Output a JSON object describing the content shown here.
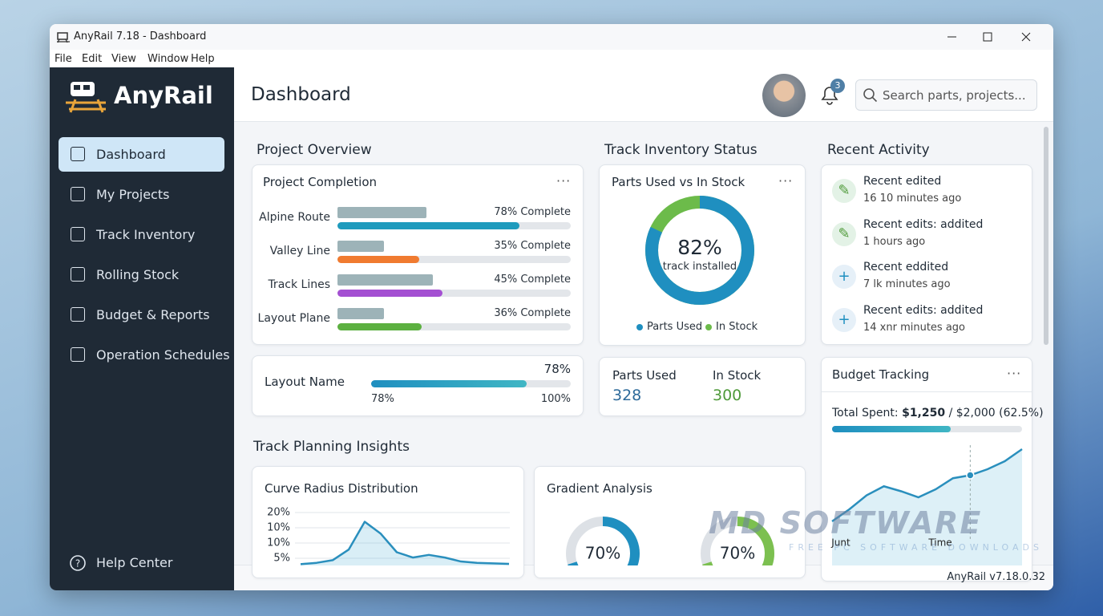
{
  "window": {
    "title": "AnyRail 7.18 - Dashboard",
    "menu": [
      "File",
      "Edit",
      "View",
      "Window",
      "Help"
    ]
  },
  "sidebar": {
    "brand": "AnyRail",
    "nav": [
      "Dashboard",
      "My Projects",
      "Track Inventory",
      "Rolling Stock",
      "Budget & Reports",
      "Operation Schedules"
    ],
    "active": 0,
    "help": "Help Center"
  },
  "header": {
    "title": "Dashboard",
    "notifications": 3,
    "search_placeholder": "Search parts, projects..."
  },
  "project_overview": {
    "heading": "Project Overview",
    "card_title": "Project Completion",
    "rows": [
      {
        "name": "Alpine Route",
        "value": 78,
        "label": "78% Complete",
        "planned": 38,
        "color": "#1e9bbd"
      },
      {
        "name": "Valley Line",
        "value": 35,
        "label": "35% Complete",
        "planned": 20,
        "color": "#f07b30"
      },
      {
        "name": "Track Lines",
        "value": 45,
        "label": "45% Complete",
        "planned": 41,
        "color": "#a450d2"
      },
      {
        "name": "Layout Plane",
        "value": 36,
        "label": "36% Complete",
        "planned": 20,
        "color": "#5cb040"
      }
    ]
  },
  "layout": {
    "name": "Layout Name",
    "value": 78,
    "label": "78%",
    "min_label": "78%",
    "max_label": "100%"
  },
  "inventory": {
    "heading": "Track Inventory Status",
    "card_title": "Parts Used vs In Stock",
    "donut": {
      "value": 82,
      "label": "82%",
      "caption": "track installed"
    },
    "legend": [
      {
        "name": "Parts Used",
        "color": "#1f8fc0"
      },
      {
        "name": "In Stock",
        "color": "#6cbb4a"
      }
    ],
    "stats": [
      {
        "name": "Parts Used",
        "value": 328,
        "color": "#2d6a9a"
      },
      {
        "name": "In Stock",
        "value": 300,
        "color": "#4f9a3a"
      }
    ]
  },
  "activity": {
    "heading": "Recent Activity",
    "items": [
      {
        "title": "Recent edited",
        "time": "16 10 minutes ago",
        "icon": "edit"
      },
      {
        "title": "Recent edits: addited",
        "time": "1 hours ago",
        "icon": "edit"
      },
      {
        "title": "Recent eddited",
        "time": "7 lk minutes ago",
        "icon": "add"
      },
      {
        "title": "Recent edits: addited",
        "time": "14 xnr minutes ago",
        "icon": "add"
      }
    ]
  },
  "budget": {
    "title": "Budget Tracking",
    "total_label": "Total Spent:",
    "spent": "$1,250",
    "rest": "/ $2,000 (62.5%)",
    "value": 62.5,
    "chart": {
      "values": [
        24,
        36,
        50,
        59,
        54,
        48,
        56,
        67,
        70,
        76,
        84,
        96
      ],
      "ylim": [
        0,
        100
      ],
      "highlight": 8,
      "x_labels": [
        "Junt",
        "Time"
      ]
    }
  },
  "insights": {
    "heading": "Track Planning Insights",
    "curve": {
      "title": "Curve Radius Distribution",
      "yticks": [
        "20%",
        "10%",
        "10%",
        "5%"
      ],
      "values": [
        0.5,
        1,
        2,
        6,
        16.5,
        12,
        5,
        3,
        4,
        3,
        1.5,
        1,
        0.8,
        0.6
      ],
      "ylim": [
        0,
        20
      ]
    },
    "gradient": {
      "title": "Gradient Analysis",
      "gauges": [
        {
          "value": 70,
          "label": "70%",
          "color": "#1f8fc0"
        },
        {
          "value": 70,
          "label": "70%",
          "color": "#7cc050"
        }
      ]
    }
  },
  "footer": {
    "version": "AnyRail v7.18.0.32"
  },
  "watermark": {
    "title": "MD SOFTWARE",
    "subtitle": "FREE PC SOFTWARE DOWNLOADS"
  }
}
